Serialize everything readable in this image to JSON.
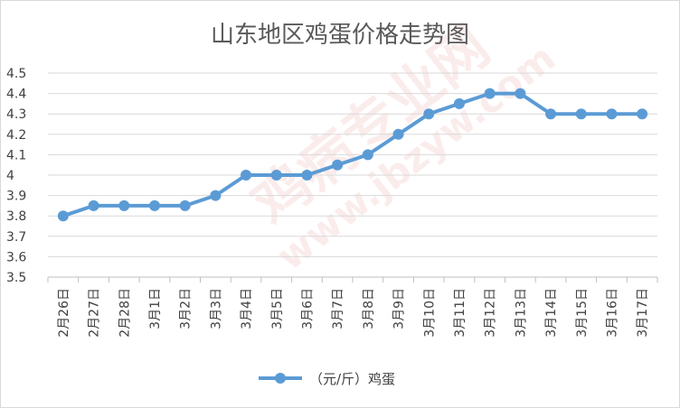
{
  "chart_data": {
    "type": "line",
    "title": "山东地区鸡蛋价格走势图",
    "categories": [
      "2月26日",
      "2月27日",
      "2月28日",
      "3月1日",
      "3月2日",
      "3月3日",
      "3月4日",
      "3月5日",
      "3月6日",
      "3月7日",
      "3月8日",
      "3月9日",
      "3月10日",
      "3月11日",
      "3月12日",
      "3月13日",
      "3月14日",
      "3月15日",
      "3月16日",
      "3月17日"
    ],
    "series": [
      {
        "name": "（元/斤）鸡蛋",
        "values": [
          3.8,
          3.85,
          3.85,
          3.85,
          3.85,
          3.9,
          4.0,
          4.0,
          4.0,
          4.05,
          4.1,
          4.2,
          4.3,
          4.35,
          4.4,
          4.4,
          4.3,
          4.3,
          4.3,
          4.3
        ]
      }
    ],
    "ylim": [
      3.5,
      4.5
    ],
    "yticks": [
      "3.5",
      "3.6",
      "3.7",
      "3.8",
      "3.9",
      "4",
      "4.1",
      "4.2",
      "4.3",
      "4.4",
      "4.5"
    ],
    "grid": true,
    "legend_position": "bottom",
    "line_color": "#5b9bd5",
    "watermark": [
      "鸡病专业网",
      "www.jbzyw.com"
    ]
  }
}
